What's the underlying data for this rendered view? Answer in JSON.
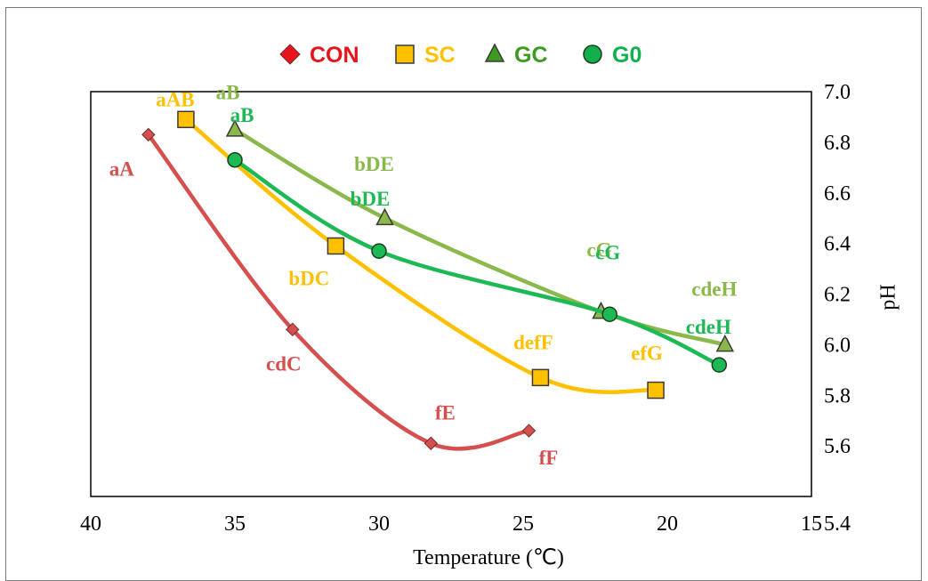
{
  "chart_data": {
    "type": "line",
    "xlabel": "Temperature (℃)",
    "ylabel": "pH",
    "xlim": [
      40,
      15
    ],
    "ylim": [
      5.4,
      7.0
    ],
    "x_ticks": [
      "40",
      "35",
      "30",
      "25",
      "20",
      "15"
    ],
    "y_ticks": [
      "5.4",
      "5.6",
      "5.8",
      "6.0",
      "6.2",
      "6.4",
      "6.6",
      "6.8",
      "7.0"
    ],
    "y_axis_side": "right",
    "legend_position": "top",
    "grid": false,
    "series": [
      {
        "name": "CON",
        "color": "#d64f4f",
        "legend_color": "#e8141b",
        "marker": "diamond",
        "x": [
          38.0,
          33.0,
          28.2,
          24.8
        ],
        "y": [
          6.83,
          6.06,
          5.61,
          5.66
        ],
        "labels": [
          "aA",
          "cdC",
          "fE",
          "fF"
        ]
      },
      {
        "name": "SC",
        "color": "#ffc000",
        "legend_color": "#ffc000",
        "marker": "square",
        "x": [
          36.7,
          31.5,
          24.4,
          20.4
        ],
        "y": [
          6.89,
          6.39,
          5.87,
          5.82
        ],
        "labels": [
          "aAB",
          "bDC",
          "defF",
          "efG"
        ]
      },
      {
        "name": "GC",
        "color": "#8bb84a",
        "legend_color": "#3e9b22",
        "marker": "triangle",
        "x": [
          35.0,
          29.8,
          22.3,
          18.0
        ],
        "y": [
          6.85,
          6.5,
          6.13,
          6.0
        ],
        "labels": [
          "aB",
          "bDE",
          "cG",
          "cdeH"
        ]
      },
      {
        "name": "G0",
        "color": "#1db954",
        "legend_color": "#12b04c",
        "marker": "circle",
        "x": [
          35.0,
          30.0,
          22.0,
          18.2
        ],
        "y": [
          6.73,
          6.37,
          6.12,
          5.92
        ],
        "labels": [
          "aB",
          "bDE",
          "cG",
          "cdeH"
        ]
      }
    ]
  }
}
